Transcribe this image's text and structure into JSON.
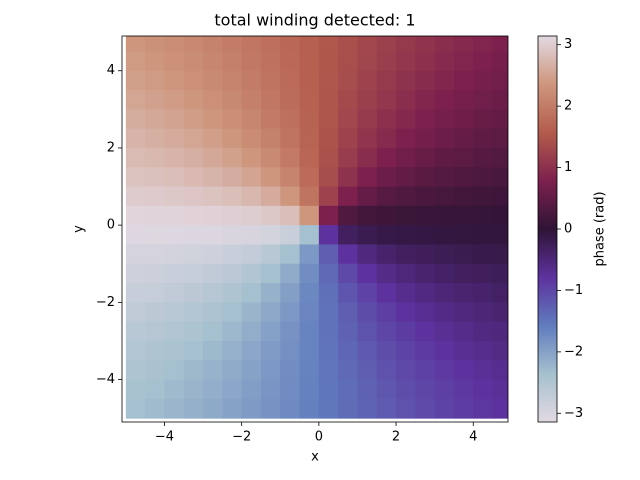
{
  "chart_data": {
    "type": "heatmap",
    "title": "total winding detected: 1",
    "xlabel": "x",
    "ylabel": "y",
    "colorbar_label": "phase (rad)",
    "colormap": "twilight_shifted",
    "xlim": [
      -5.1,
      4.9
    ],
    "ylim": [
      -5.1,
      4.9
    ],
    "clim": [
      -3.1416,
      3.1416
    ],
    "xticks": [
      {
        "value": -4,
        "label": "−4"
      },
      {
        "value": -2,
        "label": "−2"
      },
      0,
      2,
      4
    ],
    "yticks": [
      {
        "value": -4,
        "label": "−4"
      },
      {
        "value": -2,
        "label": "−2"
      },
      0,
      2,
      4
    ],
    "cticks": [
      {
        "value": -3,
        "label": "−3"
      },
      {
        "value": -2,
        "label": "−2"
      },
      {
        "value": -1,
        "label": "−1"
      },
      0,
      1,
      2,
      3
    ],
    "x": [
      -4.75,
      -4.25,
      -3.75,
      -3.25,
      -2.75,
      -2.25,
      -1.75,
      -1.25,
      -0.75,
      -0.25,
      0.25,
      0.75,
      1.25,
      1.75,
      2.25,
      2.75,
      3.25,
      3.75,
      4.25,
      4.75
    ],
    "y": [
      4.75,
      4.25,
      3.75,
      3.25,
      2.75,
      2.25,
      1.75,
      1.25,
      0.75,
      0.25,
      -0.25,
      -0.75,
      -1.25,
      -1.75,
      -2.25,
      -2.75,
      -3.25,
      -3.75,
      -4.25,
      -4.75
    ],
    "z": [
      [
        2.36,
        2.3,
        2.24,
        2.17,
        2.1,
        2.01,
        1.92,
        1.83,
        1.73,
        1.62,
        1.52,
        1.41,
        1.31,
        1.22,
        1.13,
        1.05,
        0.97,
        0.9,
        0.84,
        0.79
      ],
      [
        2.41,
        2.36,
        2.29,
        2.22,
        2.15,
        2.06,
        1.96,
        1.86,
        1.75,
        1.63,
        1.51,
        1.4,
        1.28,
        1.18,
        1.08,
        1.0,
        0.92,
        0.85,
        0.79,
        0.73
      ],
      [
        2.47,
        2.42,
        2.36,
        2.28,
        2.2,
        2.11,
        2.01,
        1.89,
        1.77,
        1.64,
        1.5,
        1.37,
        1.25,
        1.13,
        1.03,
        0.94,
        0.86,
        0.79,
        0.72,
        0.67
      ],
      [
        2.54,
        2.49,
        2.43,
        2.36,
        2.27,
        2.18,
        2.06,
        1.94,
        1.8,
        1.65,
        1.49,
        1.34,
        1.2,
        1.08,
        0.97,
        0.87,
        0.79,
        0.71,
        0.65,
        0.6
      ],
      [
        2.62,
        2.57,
        2.51,
        2.44,
        2.36,
        2.26,
        2.14,
        2.0,
        1.84,
        1.66,
        1.48,
        1.3,
        1.14,
        1.0,
        0.89,
        0.79,
        0.7,
        0.63,
        0.57,
        0.53
      ],
      [
        2.7,
        2.65,
        2.6,
        2.54,
        2.46,
        2.36,
        2.23,
        2.08,
        1.89,
        1.68,
        1.46,
        1.25,
        1.06,
        0.91,
        0.79,
        0.69,
        0.61,
        0.54,
        0.49,
        0.44
      ],
      [
        2.79,
        2.75,
        2.7,
        2.65,
        2.57,
        2.48,
        2.36,
        2.19,
        1.98,
        1.71,
        1.43,
        1.17,
        0.95,
        0.79,
        0.66,
        0.57,
        0.49,
        0.44,
        0.39,
        0.35
      ],
      [
        2.88,
        2.86,
        2.82,
        2.77,
        2.71,
        2.63,
        2.52,
        2.36,
        2.11,
        1.77,
        1.37,
        1.03,
        0.79,
        0.62,
        0.51,
        0.43,
        0.37,
        0.32,
        0.29,
        0.26
      ],
      [
        2.98,
        2.97,
        2.94,
        2.91,
        2.88,
        2.82,
        2.74,
        2.6,
        2.36,
        1.89,
        1.25,
        0.79,
        0.54,
        0.4,
        0.32,
        0.27,
        0.23,
        0.2,
        0.17,
        0.16
      ],
      [
        3.09,
        3.08,
        3.07,
        3.06,
        3.05,
        3.03,
        3.0,
        2.94,
        2.82,
        2.36,
        0.79,
        0.32,
        0.2,
        0.14,
        0.11,
        0.09,
        0.08,
        0.07,
        0.06,
        0.05
      ],
      [
        -3.09,
        -3.08,
        -3.07,
        -3.06,
        -3.05,
        -3.03,
        -3.0,
        -2.94,
        -2.82,
        -2.36,
        -0.79,
        -0.32,
        -0.2,
        -0.14,
        -0.11,
        -0.09,
        -0.08,
        -0.07,
        -0.06,
        -0.05
      ],
      [
        -2.98,
        -2.97,
        -2.94,
        -2.91,
        -2.88,
        -2.82,
        -2.74,
        -2.6,
        -2.36,
        -1.89,
        -1.25,
        -0.79,
        -0.54,
        -0.4,
        -0.32,
        -0.27,
        -0.23,
        -0.2,
        -0.17,
        -0.16
      ],
      [
        -2.88,
        -2.86,
        -2.82,
        -2.77,
        -2.71,
        -2.63,
        -2.52,
        -2.36,
        -2.11,
        -1.77,
        -1.37,
        -1.03,
        -0.79,
        -0.62,
        -0.51,
        -0.43,
        -0.37,
        -0.32,
        -0.29,
        -0.26
      ],
      [
        -2.79,
        -2.75,
        -2.7,
        -2.65,
        -2.57,
        -2.48,
        -2.36,
        -2.19,
        -1.98,
        -1.71,
        -1.43,
        -1.17,
        -0.95,
        -0.79,
        -0.66,
        -0.57,
        -0.49,
        -0.44,
        -0.39,
        -0.35
      ],
      [
        -2.7,
        -2.65,
        -2.6,
        -2.54,
        -2.46,
        -2.36,
        -2.23,
        -2.08,
        -1.89,
        -1.68,
        -1.46,
        -1.25,
        -1.06,
        -0.91,
        -0.79,
        -0.69,
        -0.61,
        -0.54,
        -0.49,
        -0.44
      ],
      [
        -2.62,
        -2.57,
        -2.51,
        -2.44,
        -2.36,
        -2.26,
        -2.14,
        -2.0,
        -1.84,
        -1.66,
        -1.48,
        -1.3,
        -1.14,
        -1.0,
        -0.89,
        -0.79,
        -0.7,
        -0.63,
        -0.57,
        -0.53
      ],
      [
        -2.54,
        -2.49,
        -2.43,
        -2.36,
        -2.27,
        -2.18,
        -2.06,
        -1.94,
        -1.8,
        -1.65,
        -1.49,
        -1.34,
        -1.2,
        -1.08,
        -0.97,
        -0.87,
        -0.79,
        -0.71,
        -0.65,
        -0.6
      ],
      [
        -2.47,
        -2.42,
        -2.36,
        -2.28,
        -2.2,
        -2.11,
        -2.01,
        -1.89,
        -1.77,
        -1.64,
        -1.5,
        -1.37,
        -1.25,
        -1.13,
        -1.03,
        -0.94,
        -0.86,
        -0.79,
        -0.72,
        -0.67
      ],
      [
        -2.41,
        -2.36,
        -2.29,
        -2.22,
        -2.15,
        -2.06,
        -1.96,
        -1.86,
        -1.75,
        -1.63,
        -1.51,
        -1.4,
        -1.28,
        -1.18,
        -1.08,
        -1.0,
        -0.92,
        -0.85,
        -0.79,
        -0.73
      ],
      [
        -2.36,
        -2.3,
        -2.24,
        -2.17,
        -2.1,
        -2.01,
        -1.92,
        -1.83,
        -1.73,
        -1.62,
        -1.52,
        -1.41,
        -1.31,
        -1.22,
        -1.13,
        -1.05,
        -0.97,
        -0.9,
        -0.84,
        -0.79
      ]
    ]
  }
}
